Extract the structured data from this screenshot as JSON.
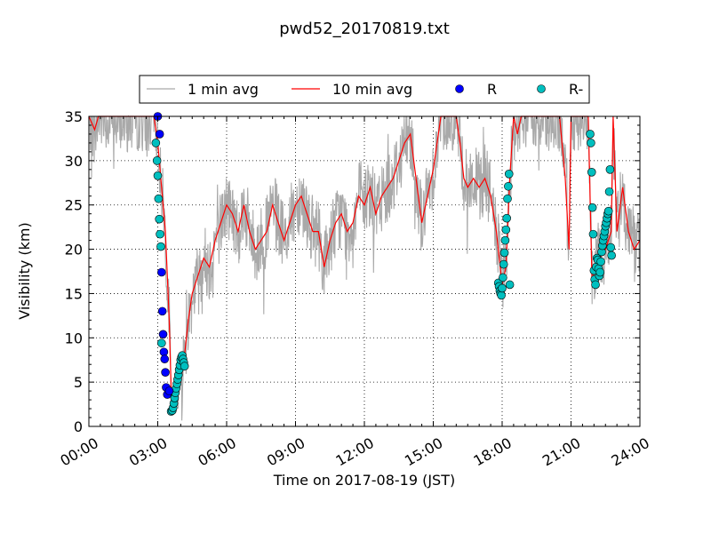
{
  "chart_data": {
    "type": "line",
    "title": "pwd52_20170819.txt",
    "xlabel": "Time on 2017-08-19 (JST)",
    "ylabel": "Visibility (km)",
    "xlim": [
      "00:00",
      "24:00"
    ],
    "ylim": [
      0,
      35
    ],
    "x_ticks": [
      "00:00",
      "03:00",
      "06:00",
      "09:00",
      "12:00",
      "15:00",
      "18:00",
      "21:00",
      "24:00"
    ],
    "y_ticks": [
      0,
      5,
      10,
      15,
      20,
      25,
      30,
      35
    ],
    "grid": true,
    "legend_position": "top-center-outside",
    "legend": [
      "1 min avg",
      "10 min avg",
      "R",
      "R-"
    ],
    "colors": {
      "one_min": "#a9a9a9",
      "ten_min": "#ff0000",
      "R": "#0000ff",
      "R_minus": "#00bfbf"
    },
    "series": [
      {
        "name": "10 min avg",
        "style": "line",
        "x": [
          "00:00",
          "00:15",
          "00:25",
          "00:40",
          "01:00",
          "01:30",
          "02:00",
          "02:30",
          "02:50",
          "03:00",
          "03:20",
          "03:30",
          "03:35",
          "03:40",
          "03:45",
          "03:50",
          "04:00",
          "04:10",
          "04:20",
          "04:30",
          "04:45",
          "05:00",
          "05:15",
          "05:30",
          "05:45",
          "06:00",
          "06:15",
          "06:30",
          "06:45",
          "07:00",
          "07:15",
          "07:30",
          "07:45",
          "08:00",
          "08:15",
          "08:30",
          "08:45",
          "09:00",
          "09:15",
          "09:30",
          "09:45",
          "10:00",
          "10:15",
          "10:30",
          "10:45",
          "11:00",
          "11:15",
          "11:30",
          "11:45",
          "12:00",
          "12:15",
          "12:30",
          "12:45",
          "13:00",
          "13:15",
          "13:30",
          "13:45",
          "14:00",
          "14:15",
          "14:30",
          "14:45",
          "15:00",
          "15:20",
          "15:40",
          "16:00",
          "16:10",
          "16:20",
          "16:30",
          "16:45",
          "17:00",
          "17:15",
          "17:30",
          "17:45",
          "18:00",
          "18:10",
          "18:20",
          "18:30",
          "18:40",
          "18:50",
          "19:00",
          "19:30",
          "20:00",
          "20:30",
          "20:45",
          "20:55",
          "21:00",
          "21:30",
          "21:45",
          "21:55",
          "22:05",
          "22:15",
          "22:30",
          "22:45",
          "22:50",
          "23:00",
          "23:15",
          "23:30",
          "23:45",
          "24:00"
        ],
        "y": [
          35,
          33.5,
          35,
          35,
          35,
          35,
          35,
          35,
          35,
          32,
          22,
          12,
          4,
          1.7,
          2.5,
          4,
          5,
          8,
          12,
          15,
          17,
          19,
          18,
          21,
          23,
          25,
          24,
          22,
          25,
          22,
          20,
          21,
          22,
          25,
          23,
          21,
          23,
          25,
          26,
          24,
          22,
          22,
          18,
          21,
          23,
          24,
          22,
          23,
          26,
          25,
          27,
          24,
          26,
          27,
          28,
          30,
          32,
          33,
          28,
          23,
          26,
          29,
          35,
          35,
          35,
          32,
          28,
          27,
          28,
          27,
          28,
          26,
          22,
          16,
          18,
          28,
          35,
          33,
          35,
          35,
          35,
          35,
          35,
          28,
          20,
          35,
          35,
          35,
          16,
          19,
          19,
          20,
          22,
          35,
          22,
          27,
          22,
          20,
          21
        ]
      },
      {
        "name": "R",
        "style": "markers",
        "x": [
          "03:00",
          "03:05",
          "03:10",
          "03:12",
          "03:14",
          "03:16",
          "03:18",
          "03:20",
          "03:22",
          "03:25",
          "03:30"
        ],
        "y": [
          35,
          33,
          17.4,
          13,
          10.4,
          8.4,
          7.6,
          6.1,
          4.4,
          3.6,
          4
        ]
      },
      {
        "name": "R-",
        "style": "markers",
        "x": [
          "02:55",
          "02:58",
          "03:00",
          "03:02",
          "03:04",
          "03:06",
          "03:08",
          "03:10",
          "03:35",
          "03:38",
          "03:40",
          "03:42",
          "03:44",
          "03:46",
          "03:48",
          "03:50",
          "03:52",
          "03:54",
          "03:56",
          "03:58",
          "04:00",
          "04:02",
          "04:04",
          "04:06",
          "04:08",
          "04:10",
          "17:50",
          "17:52",
          "17:54",
          "17:56",
          "17:58",
          "18:00",
          "18:02",
          "18:04",
          "18:06",
          "18:08",
          "18:10",
          "18:12",
          "18:14",
          "18:16",
          "18:18",
          "18:20",
          "21:50",
          "21:52",
          "21:54",
          "21:56",
          "21:58",
          "22:00",
          "22:02",
          "22:04",
          "22:06",
          "22:08",
          "22:10",
          "22:12",
          "22:14",
          "22:16",
          "22:18",
          "22:20",
          "22:22",
          "22:24",
          "22:26",
          "22:28",
          "22:30",
          "22:32",
          "22:34",
          "22:36",
          "22:38",
          "22:40",
          "22:42",
          "22:44",
          "22:46"
        ],
        "y": [
          32,
          30,
          28.3,
          25.7,
          23.4,
          21.7,
          20.3,
          9.4,
          1.7,
          1.8,
          2.1,
          2.6,
          3.2,
          3.8,
          4.3,
          4.8,
          5.3,
          5.8,
          6.4,
          6.9,
          7.5,
          7.8,
          8.0,
          7.6,
          7.2,
          6.8,
          16.2,
          15.8,
          15.3,
          15.0,
          14.8,
          15.6,
          16.8,
          18.3,
          19.6,
          21.0,
          22.2,
          23.5,
          25.7,
          27.1,
          28.5,
          16.0,
          33,
          32,
          28.7,
          24.7,
          21.7,
          17.6,
          16.6,
          16.0,
          18.0,
          19.0,
          18.8,
          17.8,
          17.0,
          17.4,
          18.6,
          19.7,
          20.4,
          21.0,
          21.5,
          22.0,
          22.6,
          23.0,
          23.5,
          24.0,
          24.3,
          26.5,
          29.0,
          20.2,
          19.3
        ]
      }
    ]
  }
}
